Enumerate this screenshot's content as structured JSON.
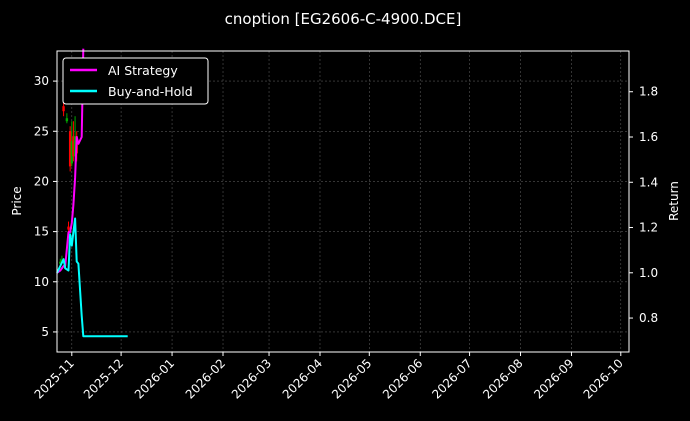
{
  "chart_data": {
    "type": "line",
    "title": "cnoption [EG2606-C-4900.DCE]",
    "ylabel": "Price",
    "y2label": "Return",
    "xlim": [
      "2025-10-23",
      "2026-10-06"
    ],
    "ylim": [
      3.0,
      33.0
    ],
    "y2lim": [
      0.65,
      1.98
    ],
    "grid": true,
    "legend_placement": "top-left",
    "x_ticks": [
      "2025-11",
      "2025-12",
      "2026-01",
      "2026-02",
      "2026-03",
      "2026-04",
      "2026-05",
      "2026-06",
      "2026-07",
      "2026-08",
      "2026-09",
      "2026-10"
    ],
    "y_ticks": [
      5,
      10,
      15,
      20,
      25,
      30
    ],
    "y2_ticks": [
      0.8,
      1.0,
      1.2,
      1.4,
      1.6,
      1.8
    ],
    "candles": [
      {
        "date": "2025-10-25",
        "open": 11.8,
        "close": 12.0,
        "high": 12.3,
        "low": 11.5
      },
      {
        "date": "2025-10-26",
        "open": 12.0,
        "close": 12.2,
        "high": 12.6,
        "low": 11.8
      },
      {
        "date": "2025-10-27",
        "open": 27.5,
        "close": 27.0,
        "high": 28.0,
        "low": 26.5
      },
      {
        "date": "2025-10-29",
        "open": 26.0,
        "close": 26.3,
        "high": 26.8,
        "low": 25.8
      },
      {
        "date": "2025-10-30",
        "open": 15.5,
        "close": 15.2,
        "high": 16.0,
        "low": 14.8
      },
      {
        "date": "2025-10-31",
        "open": 25.0,
        "close": 21.5,
        "high": 25.5,
        "low": 21.0
      },
      {
        "date": "2025-11-01",
        "open": 21.8,
        "close": 24.0,
        "high": 26.0,
        "low": 21.5
      },
      {
        "date": "2025-11-02",
        "open": 24.5,
        "close": 22.5,
        "high": 26.0,
        "low": 22.0
      },
      {
        "date": "2025-11-03",
        "open": 22.5,
        "close": 24.5,
        "high": 26.5,
        "low": 19.5
      },
      {
        "date": "2025-11-04",
        "open": 24.5,
        "close": 22.8,
        "high": 25.0,
        "low": 22.0
      }
    ],
    "series": [
      {
        "name": "AI Strategy",
        "color": "#ff00ff",
        "axis": "right",
        "x": [
          "2025-10-23",
          "2025-10-25",
          "2025-10-27",
          "2025-10-28",
          "2025-10-30",
          "2025-10-31",
          "2025-11-01",
          "2025-11-02",
          "2025-11-03",
          "2025-11-04",
          "2025-11-05",
          "2025-11-07",
          "2025-11-08"
        ],
        "values": [
          1.0,
          1.01,
          1.03,
          1.03,
          1.18,
          1.18,
          1.22,
          1.3,
          1.42,
          1.6,
          1.57,
          1.6,
          1.99
        ]
      },
      {
        "name": "Buy-and-Hold",
        "color": "#00ffff",
        "axis": "right",
        "x": [
          "2025-10-23",
          "2025-10-25",
          "2025-10-27",
          "2025-10-28",
          "2025-10-30",
          "2025-10-31",
          "2025-11-01",
          "2025-11-02",
          "2025-11-03",
          "2025-11-04",
          "2025-11-05",
          "2025-11-07",
          "2025-11-08",
          "2025-11-10",
          "2025-11-12",
          "2025-11-15",
          "2025-11-20",
          "2025-11-25",
          "2025-12-01",
          "2025-12-05"
        ],
        "values": [
          1.0,
          1.03,
          1.06,
          1.02,
          1.01,
          1.17,
          1.12,
          1.18,
          1.24,
          1.05,
          1.04,
          0.81,
          0.72,
          0.72,
          0.72,
          0.72,
          0.72,
          0.72,
          0.72,
          0.72
        ]
      }
    ]
  }
}
